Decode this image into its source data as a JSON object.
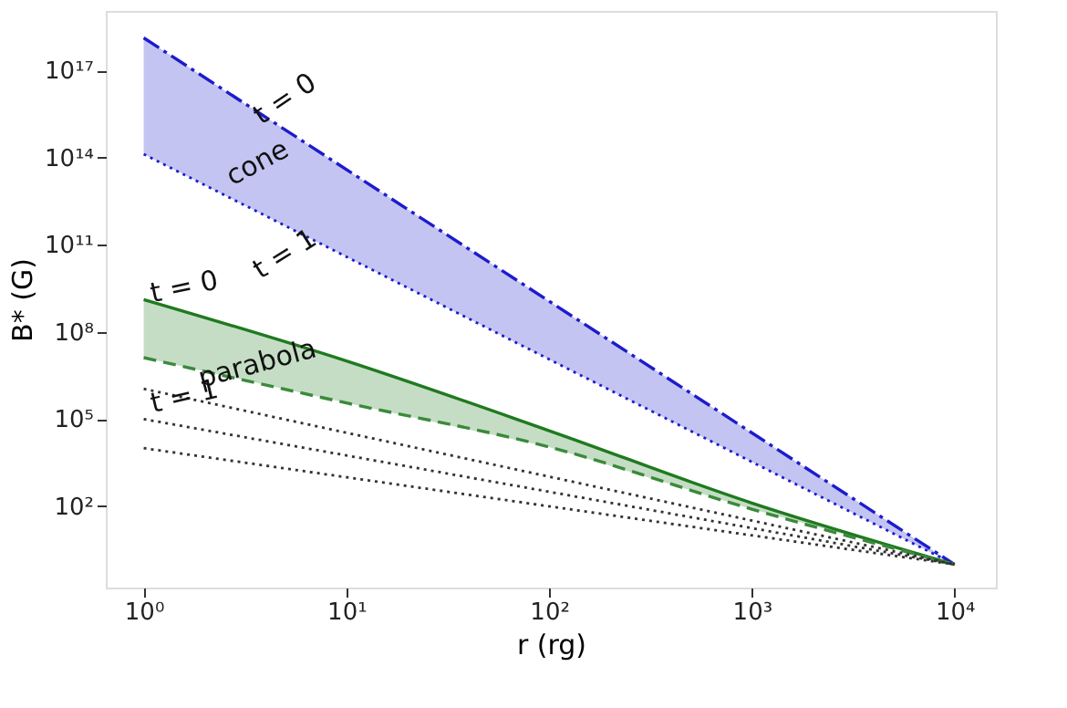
{
  "chart_data": {
    "type": "line",
    "xlabel": "r (rg)",
    "ylabel": "B* (G)",
    "log": "xy",
    "grid": false,
    "xlim": [
      0.65,
      16000
    ],
    "ylim": [
      0.16,
      1.1e+19
    ],
    "xticks": [
      {
        "value": 1,
        "label": "10⁰"
      },
      {
        "value": 10,
        "label": "10¹"
      },
      {
        "value": 100,
        "label": "10²"
      },
      {
        "value": 1000,
        "label": "10³"
      },
      {
        "value": 10000,
        "label": "10⁴"
      }
    ],
    "yticks": [
      {
        "value": 100,
        "label": "10²"
      },
      {
        "value": 100000.0,
        "label": "10⁵"
      },
      {
        "value": 100000000.0,
        "label": "10⁸"
      },
      {
        "value": 100000000000.0,
        "label": "10¹¹"
      },
      {
        "value": 100000000000000.0,
        "label": "10¹⁴"
      },
      {
        "value": 1e+17,
        "label": "10¹⁷"
      }
    ],
    "series": [
      {
        "color": "#1c1ccc",
        "line_style": "dashdot",
        "x": [
          1,
          10000
        ],
        "values": [
          1.3e+18,
          1
        ],
        "lower": [
          130000000000000.0,
          1
        ],
        "upper": [
          1.3e+18,
          1
        ]
      },
      {
        "color": "#1c1ccc",
        "line_style": "dotted",
        "x": [
          1,
          10000
        ],
        "values": [
          130000000000000.0,
          1
        ]
      },
      {
        "color": "#1f7a1f",
        "line_style": "solid",
        "x": [
          1,
          10,
          100,
          1000,
          10000
        ],
        "values": [
          1300000000.0,
          10000000.0,
          40000.0,
          130,
          1
        ],
        "lower": [
          13000000.0,
          360000.0,
          11000.0,
          80,
          1
        ],
        "upper": [
          1300000000.0,
          10000000.0,
          40000.0,
          130,
          1
        ]
      },
      {
        "color": "#3a8a3a",
        "line_style": "dashed",
        "x": [
          1,
          10,
          100,
          1000,
          10000
        ],
        "values": [
          13000000.0,
          360000.0,
          11000.0,
          80,
          1
        ]
      },
      {
        "color": "#333333",
        "line_style": "dotted",
        "x": [
          1,
          10000
        ],
        "values": [
          1100000.0,
          1
        ]
      },
      {
        "color": "#333333",
        "line_style": "dotted",
        "x": [
          1,
          10000
        ],
        "values": [
          100000.0,
          1
        ]
      },
      {
        "color": "#333333",
        "line_style": "dotted",
        "x": [
          1,
          10000
        ],
        "values": [
          10000.0,
          1
        ]
      }
    ],
    "annotations": [
      "t = 0",
      "cone",
      "t = 1",
      "t = 0",
      "parabola",
      "t = 1"
    ]
  }
}
